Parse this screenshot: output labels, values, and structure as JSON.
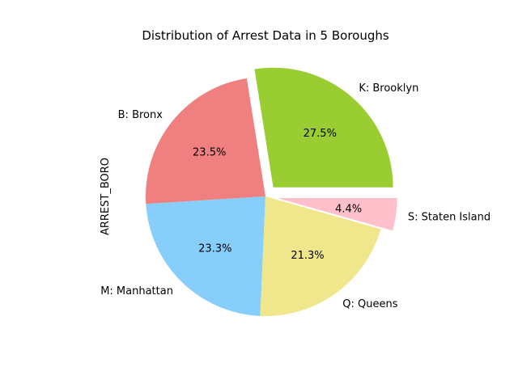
{
  "chart_data": {
    "type": "pie",
    "title": "Distribution of Arrest Data in 5 Boroughs",
    "ylabel": "ARREST_BORO",
    "start_angle_deg": 0,
    "direction": "counterclockwise",
    "slices": [
      {
        "label": "K: Brooklyn",
        "value": 27.5,
        "pct_label": "27.5%",
        "color": "#9acd32",
        "exploded": true
      },
      {
        "label": "B: Bronx",
        "value": 23.5,
        "pct_label": "23.5%",
        "color": "#f08080",
        "exploded": false
      },
      {
        "label": "M: Manhattan",
        "value": 23.3,
        "pct_label": "23.3%",
        "color": "#87cefa",
        "exploded": false
      },
      {
        "label": "Q: Queens",
        "value": 21.3,
        "pct_label": "21.3%",
        "color": "#f0e68c",
        "exploded": false
      },
      {
        "label": "S: Staten Island",
        "value": 4.4,
        "pct_label": "4.4%",
        "color": "#ffc0cb",
        "exploded": true
      }
    ]
  }
}
